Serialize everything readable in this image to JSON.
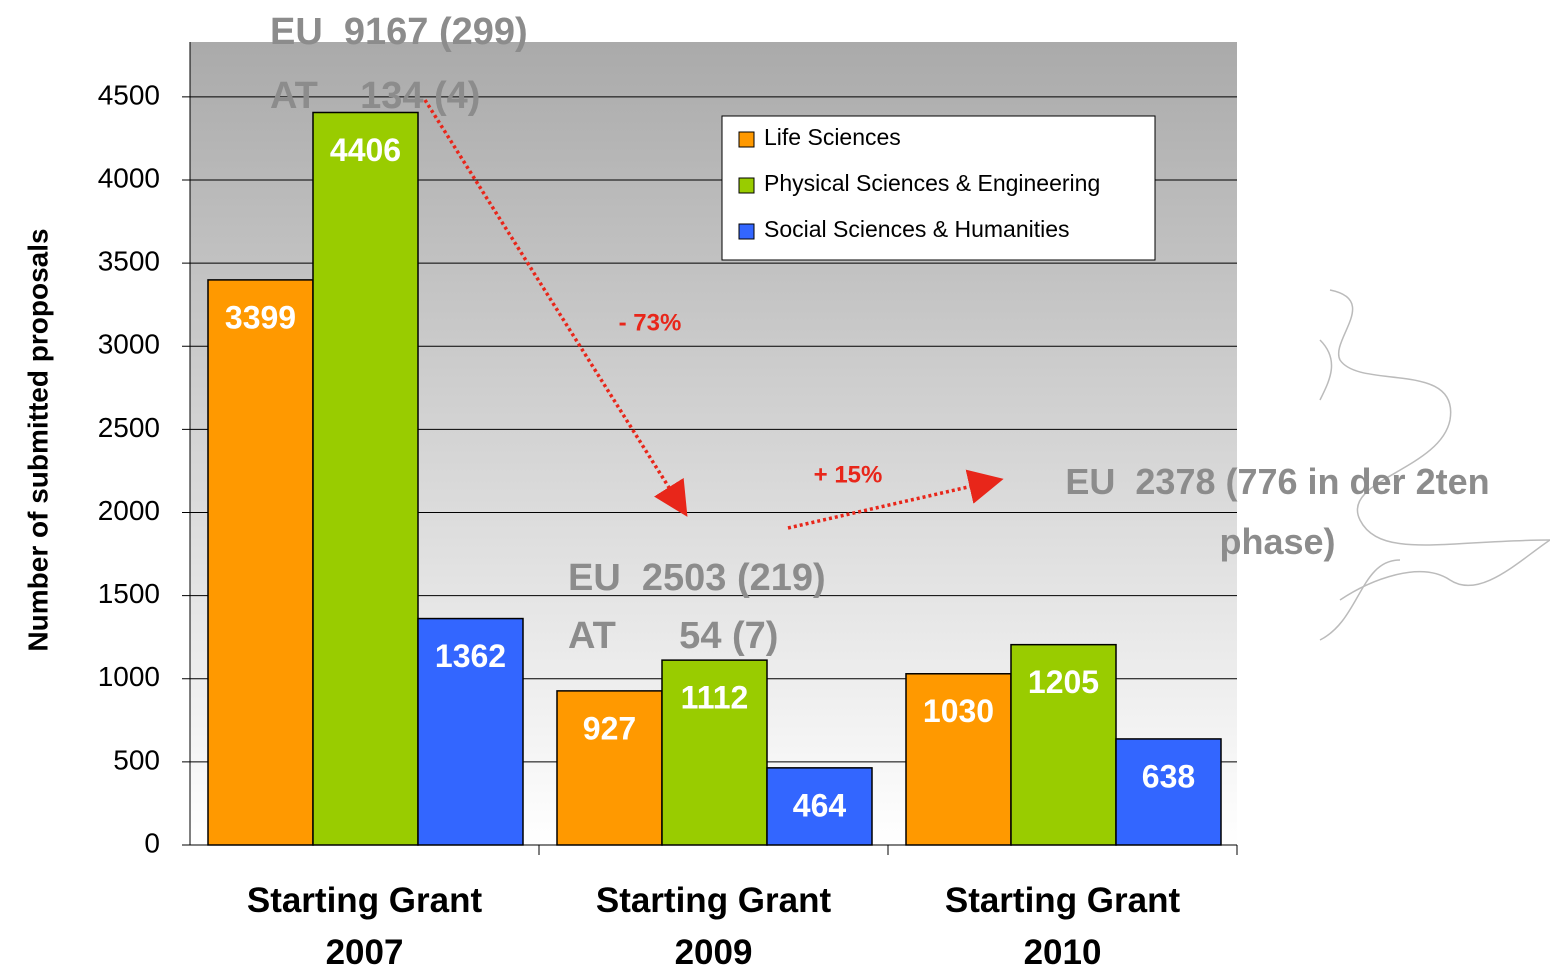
{
  "chart_data": {
    "type": "bar",
    "y_label": "Number of submitted proposals",
    "categories": [
      "Starting Grant 2007",
      "Starting Grant 2009",
      "Starting Grant 2010"
    ],
    "series": [
      {
        "name": "Life Sciences",
        "color": "#ff9900",
        "values": [
          3399,
          927,
          1030
        ]
      },
      {
        "name": "Physical Sciences & Engineering",
        "color": "#99cc00",
        "values": [
          4406,
          1112,
          1205
        ]
      },
      {
        "name": "Social Sciences & Humanities",
        "color": "#3366ff",
        "values": [
          1362,
          464,
          638
        ]
      }
    ],
    "ylim": [
      0,
      4830
    ],
    "yticks": [
      0,
      500,
      1000,
      1500,
      2000,
      2500,
      3000,
      3500,
      4000,
      4500
    ],
    "grid": true,
    "legend": "upper right",
    "annotations": [
      "EU  9167 (299)",
      "AT    134 (4)",
      "- 73%",
      "+ 15%",
      "EU  2378 (776 in der 2ten phase)",
      "EU  2503 (219)",
      "AT      54 (7)"
    ]
  }
}
